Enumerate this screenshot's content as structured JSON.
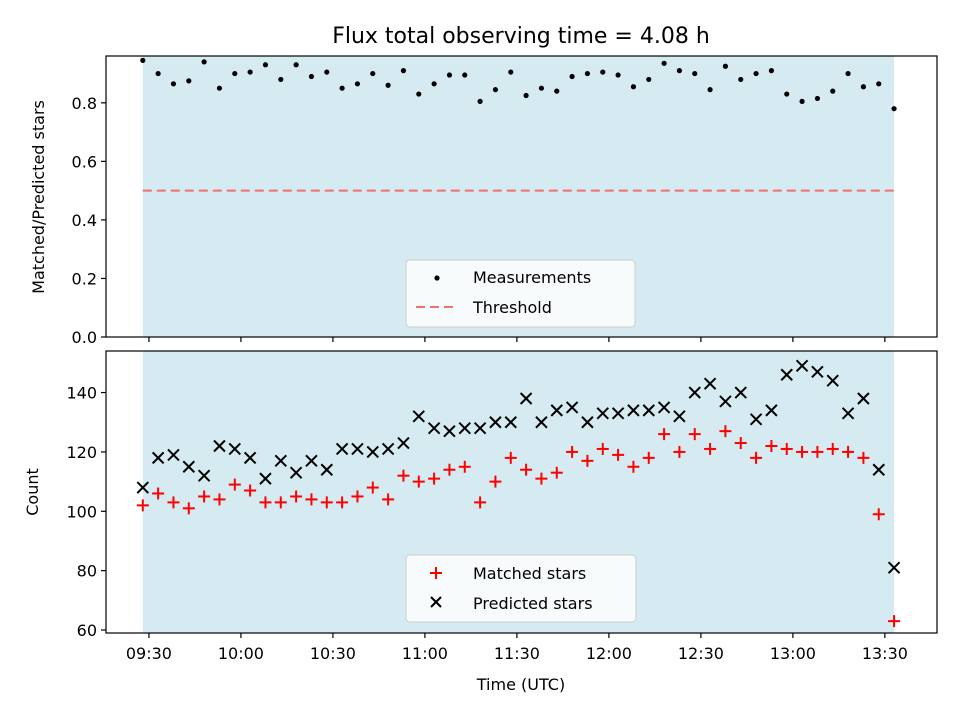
{
  "chart_data": [
    {
      "type": "scatter",
      "title": "Flux total observing time = 4.08 h",
      "xlabel": "",
      "ylabel": "Matched/Predicted stars",
      "ylim": [
        0.0,
        0.96
      ],
      "yticks": [
        "0.0",
        "0.2",
        "0.4",
        "0.6",
        "0.8"
      ],
      "ytick_values": [
        0.0,
        0.2,
        0.4,
        0.6,
        0.8
      ],
      "shaded_span": [
        "09:28",
        "13:33"
      ],
      "legend_position": "lower-center",
      "series": [
        {
          "name": "Measurements",
          "marker": "dot",
          "color": "#000000",
          "x": [
            "09:28",
            "09:33",
            "09:38",
            "09:43",
            "09:48",
            "09:53",
            "09:58",
            "10:03",
            "10:08",
            "10:13",
            "10:18",
            "10:23",
            "10:28",
            "10:33",
            "10:38",
            "10:43",
            "10:48",
            "10:53",
            "10:58",
            "11:03",
            "11:08",
            "11:13",
            "11:18",
            "11:23",
            "11:28",
            "11:33",
            "11:38",
            "11:43",
            "11:48",
            "11:53",
            "11:58",
            "12:03",
            "12:08",
            "12:13",
            "12:18",
            "12:23",
            "12:28",
            "12:33",
            "12:38",
            "12:43",
            "12:48",
            "12:53",
            "12:58",
            "13:03",
            "13:08",
            "13:13",
            "13:18",
            "13:23",
            "13:28",
            "13:33"
          ],
          "y": [
            0.945,
            0.9,
            0.865,
            0.875,
            0.94,
            0.85,
            0.9,
            0.905,
            0.93,
            0.88,
            0.93,
            0.89,
            0.905,
            0.85,
            0.865,
            0.9,
            0.86,
            0.91,
            0.83,
            0.865,
            0.895,
            0.895,
            0.805,
            0.845,
            0.905,
            0.825,
            0.85,
            0.84,
            0.89,
            0.9,
            0.905,
            0.895,
            0.855,
            0.88,
            0.935,
            0.91,
            0.9,
            0.845,
            0.925,
            0.88,
            0.9,
            0.91,
            0.83,
            0.805,
            0.815,
            0.84,
            0.9,
            0.855,
            0.865,
            0.78
          ]
        },
        {
          "name": "Threshold",
          "marker": "dashed-line",
          "color": "#f07070",
          "x": [
            "09:28",
            "13:33"
          ],
          "y": [
            0.5,
            0.5
          ]
        }
      ]
    },
    {
      "type": "scatter",
      "title": "",
      "xlabel": "Time (UTC)",
      "ylabel": "Count",
      "ylim": [
        59,
        154
      ],
      "yticks": [
        "60",
        "80",
        "100",
        "120",
        "140"
      ],
      "ytick_values": [
        60,
        80,
        100,
        120,
        140
      ],
      "xticks": [
        "09:30",
        "10:00",
        "10:30",
        "11:00",
        "11:30",
        "12:00",
        "12:30",
        "13:00",
        "13:30"
      ],
      "xlim": [
        "09:16",
        "13:47"
      ],
      "shaded_span": [
        "09:28",
        "13:33"
      ],
      "legend_position": "lower-center",
      "series": [
        {
          "name": "Matched stars",
          "marker": "plus",
          "color": "#ff0000",
          "x": [
            "09:28",
            "09:33",
            "09:38",
            "09:43",
            "09:48",
            "09:53",
            "09:58",
            "10:03",
            "10:08",
            "10:13",
            "10:18",
            "10:23",
            "10:28",
            "10:33",
            "10:38",
            "10:43",
            "10:48",
            "10:53",
            "10:58",
            "11:03",
            "11:08",
            "11:13",
            "11:18",
            "11:23",
            "11:28",
            "11:33",
            "11:38",
            "11:43",
            "11:48",
            "11:53",
            "11:58",
            "12:03",
            "12:08",
            "12:13",
            "12:18",
            "12:23",
            "12:28",
            "12:33",
            "12:38",
            "12:43",
            "12:48",
            "12:53",
            "12:58",
            "13:03",
            "13:08",
            "13:13",
            "13:18",
            "13:23",
            "13:28",
            "13:33"
          ],
          "y": [
            102,
            106,
            103,
            101,
            105,
            104,
            109,
            107,
            103,
            103,
            105,
            104,
            103,
            103,
            105,
            108,
            104,
            112,
            110,
            111,
            114,
            115,
            103,
            110,
            118,
            114,
            111,
            113,
            120,
            117,
            121,
            119,
            115,
            118,
            126,
            120,
            126,
            121,
            127,
            123,
            118,
            122,
            121,
            120,
            120,
            121,
            120,
            118,
            99,
            63
          ]
        },
        {
          "name": "Predicted stars",
          "marker": "x",
          "color": "#000000",
          "x": [
            "09:28",
            "09:33",
            "09:38",
            "09:43",
            "09:48",
            "09:53",
            "09:58",
            "10:03",
            "10:08",
            "10:13",
            "10:18",
            "10:23",
            "10:28",
            "10:33",
            "10:38",
            "10:43",
            "10:48",
            "10:53",
            "10:58",
            "11:03",
            "11:08",
            "11:13",
            "11:18",
            "11:23",
            "11:28",
            "11:33",
            "11:38",
            "11:43",
            "11:48",
            "11:53",
            "11:58",
            "12:03",
            "12:08",
            "12:13",
            "12:18",
            "12:23",
            "12:28",
            "12:33",
            "12:38",
            "12:43",
            "12:48",
            "12:53",
            "12:58",
            "13:03",
            "13:08",
            "13:13",
            "13:18",
            "13:23",
            "13:28",
            "13:33"
          ],
          "y": [
            108,
            118,
            119,
            115,
            112,
            122,
            121,
            118,
            111,
            117,
            113,
            117,
            114,
            121,
            121,
            120,
            121,
            123,
            132,
            128,
            127,
            128,
            128,
            130,
            130,
            138,
            130,
            134,
            135,
            130,
            133,
            133,
            134,
            134,
            135,
            132,
            140,
            143,
            137,
            140,
            131,
            134,
            146,
            149,
            147,
            144,
            133,
            138,
            114,
            81
          ]
        }
      ]
    }
  ]
}
